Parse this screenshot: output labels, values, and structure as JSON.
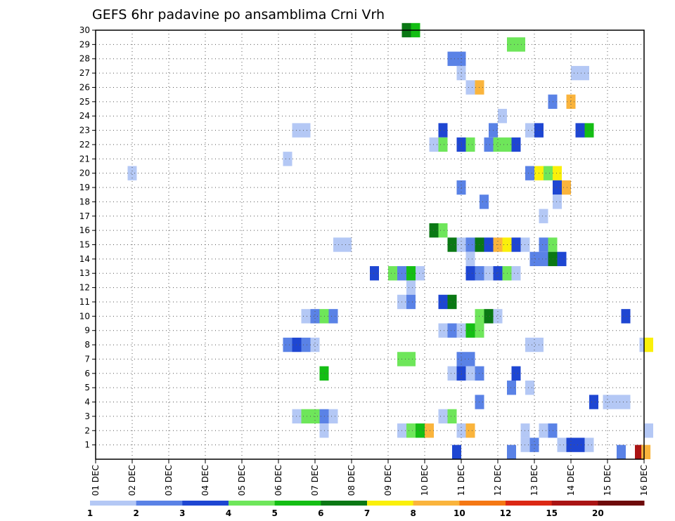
{
  "chart_data": {
    "type": "heatmap",
    "title": "GEFS 6hr padavine po ansamblima Crni Vrh",
    "y_ticks": [
      "1",
      "2",
      "3",
      "4",
      "5",
      "6",
      "7",
      "8",
      "9",
      "10",
      "11",
      "12",
      "13",
      "14",
      "15",
      "16",
      "17",
      "18",
      "19",
      "20",
      "21",
      "22",
      "23",
      "24",
      "25",
      "26",
      "27",
      "28",
      "29",
      "30"
    ],
    "x_ticks": [
      "01 DEC",
      "02 DEC",
      "03 DEC",
      "04 DEC",
      "05 DEC",
      "06 DEC",
      "07 DEC",
      "08 DEC",
      "09 DEC",
      "10 DEC",
      "11 DEC",
      "12 DEC",
      "13 DEC",
      "14 DEC",
      "15 DEC",
      "16 DEC"
    ],
    "y_range": [
      0,
      30
    ],
    "x_range_days": [
      0,
      15
    ],
    "grid": true,
    "colorbar": {
      "labels": [
        "1",
        "2",
        "3",
        "4",
        "5",
        "6",
        "7",
        "8",
        "10",
        "12",
        "15",
        "20"
      ],
      "colors": [
        "#b4c8f5",
        "#5a82e6",
        "#1e46d2",
        "#6ee65a",
        "#14be14",
        "#0a7814",
        "#faf00a",
        "#fab43c",
        "#f57814",
        "#dc2814",
        "#aa1414",
        "#6e0a0a"
      ]
    },
    "cells": [
      {
        "m": 30,
        "t": 33.5,
        "l": 6
      },
      {
        "m": 30,
        "t": 34.5,
        "l": 5
      },
      {
        "m": 29,
        "t": 45,
        "l": 4
      },
      {
        "m": 29,
        "t": 46,
        "l": 4
      },
      {
        "m": 28,
        "t": 38.5,
        "l": 2
      },
      {
        "m": 28,
        "t": 39.5,
        "l": 2
      },
      {
        "m": 27,
        "t": 39.5,
        "l": 1
      },
      {
        "m": 27,
        "t": 52,
        "l": 1
      },
      {
        "m": 27,
        "t": 53,
        "l": 1
      },
      {
        "m": 26,
        "t": 40.5,
        "l": 1
      },
      {
        "m": 26,
        "t": 41.5,
        "l": 8
      },
      {
        "m": 25,
        "t": 49.5,
        "l": 2
      },
      {
        "m": 25,
        "t": 51.5,
        "l": 8
      },
      {
        "m": 24,
        "t": 44,
        "l": 1
      },
      {
        "m": 23,
        "t": 21.5,
        "l": 1
      },
      {
        "m": 23,
        "t": 22.5,
        "l": 1
      },
      {
        "m": 23,
        "t": 37.5,
        "l": 3
      },
      {
        "m": 23,
        "t": 43,
        "l": 2
      },
      {
        "m": 23,
        "t": 47,
        "l": 1
      },
      {
        "m": 23,
        "t": 48,
        "l": 3
      },
      {
        "m": 23,
        "t": 52.5,
        "l": 3
      },
      {
        "m": 23,
        "t": 53.5,
        "l": 5
      },
      {
        "m": 22,
        "t": 36.5,
        "l": 1
      },
      {
        "m": 22,
        "t": 37.5,
        "l": 4
      },
      {
        "m": 22,
        "t": 39.5,
        "l": 3
      },
      {
        "m": 22,
        "t": 40.5,
        "l": 4
      },
      {
        "m": 22,
        "t": 42.5,
        "l": 2
      },
      {
        "m": 22,
        "t": 43.5,
        "l": 4
      },
      {
        "m": 22,
        "t": 44.5,
        "l": 4
      },
      {
        "m": 22,
        "t": 45.5,
        "l": 3
      },
      {
        "m": 21,
        "t": 20.5,
        "l": 1
      },
      {
        "m": 20,
        "t": 3.5,
        "l": 1
      },
      {
        "m": 20,
        "t": 47,
        "l": 2
      },
      {
        "m": 20,
        "t": 48,
        "l": 7
      },
      {
        "m": 20,
        "t": 49,
        "l": 4
      },
      {
        "m": 20,
        "t": 50,
        "l": 7
      },
      {
        "m": 19,
        "t": 39.5,
        "l": 2
      },
      {
        "m": 19,
        "t": 50,
        "l": 3
      },
      {
        "m": 19,
        "t": 51,
        "l": 8
      },
      {
        "m": 18,
        "t": 42,
        "l": 2
      },
      {
        "m": 18,
        "t": 50,
        "l": 1
      },
      {
        "m": 17,
        "t": 48.5,
        "l": 1
      },
      {
        "m": 16,
        "t": 36.5,
        "l": 6
      },
      {
        "m": 16,
        "t": 37.5,
        "l": 4
      },
      {
        "m": 15,
        "t": 26,
        "l": 1
      },
      {
        "m": 15,
        "t": 27,
        "l": 1
      },
      {
        "m": 15,
        "t": 38.5,
        "l": 6
      },
      {
        "m": 15,
        "t": 39.5,
        "l": 1
      },
      {
        "m": 15,
        "t": 40.5,
        "l": 2
      },
      {
        "m": 15,
        "t": 41.5,
        "l": 6
      },
      {
        "m": 15,
        "t": 42.5,
        "l": 3
      },
      {
        "m": 15,
        "t": 43.5,
        "l": 8
      },
      {
        "m": 15,
        "t": 44.5,
        "l": 7
      },
      {
        "m": 15,
        "t": 45.5,
        "l": 3
      },
      {
        "m": 15,
        "t": 46.5,
        "l": 1
      },
      {
        "m": 15,
        "t": 48.5,
        "l": 2
      },
      {
        "m": 15,
        "t": 49.5,
        "l": 4
      },
      {
        "m": 14,
        "t": 40.5,
        "l": 1
      },
      {
        "m": 14,
        "t": 47.5,
        "l": 2
      },
      {
        "m": 14,
        "t": 48.5,
        "l": 2
      },
      {
        "m": 14,
        "t": 49.5,
        "l": 6
      },
      {
        "m": 14,
        "t": 50.5,
        "l": 3
      },
      {
        "m": 13,
        "t": 30,
        "l": 3
      },
      {
        "m": 13,
        "t": 32,
        "l": 4
      },
      {
        "m": 13,
        "t": 33,
        "l": 2
      },
      {
        "m": 13,
        "t": 34,
        "l": 5
      },
      {
        "m": 13,
        "t": 35,
        "l": 1
      },
      {
        "m": 13,
        "t": 40.5,
        "l": 3
      },
      {
        "m": 13,
        "t": 41.5,
        "l": 2
      },
      {
        "m": 13,
        "t": 42.5,
        "l": 1
      },
      {
        "m": 13,
        "t": 43.5,
        "l": 3
      },
      {
        "m": 13,
        "t": 44.5,
        "l": 4
      },
      {
        "m": 13,
        "t": 45.5,
        "l": 1
      },
      {
        "m": 12,
        "t": 34,
        "l": 1
      },
      {
        "m": 11,
        "t": 33,
        "l": 1
      },
      {
        "m": 11,
        "t": 34,
        "l": 2
      },
      {
        "m": 11,
        "t": 37.5,
        "l": 3
      },
      {
        "m": 11,
        "t": 38.5,
        "l": 6
      },
      {
        "m": 10,
        "t": 22.5,
        "l": 1
      },
      {
        "m": 10,
        "t": 23.5,
        "l": 2
      },
      {
        "m": 10,
        "t": 24.5,
        "l": 4
      },
      {
        "m": 10,
        "t": 25.5,
        "l": 2
      },
      {
        "m": 10,
        "t": 41.5,
        "l": 4
      },
      {
        "m": 10,
        "t": 42.5,
        "l": 6
      },
      {
        "m": 10,
        "t": 43.5,
        "l": 1
      },
      {
        "m": 10,
        "t": 57.5,
        "l": 3
      },
      {
        "m": 9,
        "t": 37.5,
        "l": 1
      },
      {
        "m": 9,
        "t": 38.5,
        "l": 2
      },
      {
        "m": 9,
        "t": 39.5,
        "l": 1
      },
      {
        "m": 9,
        "t": 40.5,
        "l": 5
      },
      {
        "m": 9,
        "t": 41.5,
        "l": 4
      },
      {
        "m": 8,
        "t": 20.5,
        "l": 2
      },
      {
        "m": 8,
        "t": 21.5,
        "l": 3
      },
      {
        "m": 8,
        "t": 22.5,
        "l": 2
      },
      {
        "m": 8,
        "t": 23.5,
        "l": 1
      },
      {
        "m": 8,
        "t": 47,
        "l": 1
      },
      {
        "m": 8,
        "t": 48,
        "l": 1
      },
      {
        "m": 8,
        "t": 59.5,
        "l": 1
      },
      {
        "m": 8,
        "t": 60,
        "l": 7
      },
      {
        "m": 7,
        "t": 33,
        "l": 4
      },
      {
        "m": 7,
        "t": 34,
        "l": 4
      },
      {
        "m": 7,
        "t": 39.5,
        "l": 2
      },
      {
        "m": 7,
        "t": 40.5,
        "l": 2
      },
      {
        "m": 6,
        "t": 24.5,
        "l": 5
      },
      {
        "m": 6,
        "t": 38.5,
        "l": 1
      },
      {
        "m": 6,
        "t": 39.5,
        "l": 3
      },
      {
        "m": 6,
        "t": 40.5,
        "l": 1
      },
      {
        "m": 6,
        "t": 41.5,
        "l": 2
      },
      {
        "m": 6,
        "t": 45.5,
        "l": 3
      },
      {
        "m": 5,
        "t": 45,
        "l": 2
      },
      {
        "m": 5,
        "t": 47,
        "l": 1
      },
      {
        "m": 4,
        "t": 41.5,
        "l": 2
      },
      {
        "m": 4,
        "t": 54,
        "l": 3
      },
      {
        "m": 4,
        "t": 55.5,
        "l": 1
      },
      {
        "m": 4,
        "t": 56.5,
        "l": 1
      },
      {
        "m": 4,
        "t": 57.5,
        "l": 1
      },
      {
        "m": 3,
        "t": 21.5,
        "l": 1
      },
      {
        "m": 3,
        "t": 22.5,
        "l": 4
      },
      {
        "m": 3,
        "t": 23.5,
        "l": 4
      },
      {
        "m": 3,
        "t": 24.5,
        "l": 2
      },
      {
        "m": 3,
        "t": 25.5,
        "l": 1
      },
      {
        "m": 3,
        "t": 37.5,
        "l": 1
      },
      {
        "m": 3,
        "t": 38.5,
        "l": 4
      },
      {
        "m": 2,
        "t": 24.5,
        "l": 1
      },
      {
        "m": 2,
        "t": 33,
        "l": 1
      },
      {
        "m": 2,
        "t": 34,
        "l": 4
      },
      {
        "m": 2,
        "t": 35,
        "l": 5
      },
      {
        "m": 2,
        "t": 36,
        "l": 8
      },
      {
        "m": 2,
        "t": 39.5,
        "l": 1
      },
      {
        "m": 2,
        "t": 40.5,
        "l": 8
      },
      {
        "m": 2,
        "t": 46.5,
        "l": 1
      },
      {
        "m": 2,
        "t": 48.5,
        "l": 1
      },
      {
        "m": 2,
        "t": 49.5,
        "l": 2
      },
      {
        "m": 2,
        "t": 60,
        "l": 1
      },
      {
        "m": 1,
        "t": 46.5,
        "l": 1
      },
      {
        "m": 1,
        "t": 47.5,
        "l": 2
      },
      {
        "m": 1,
        "t": 50.5,
        "l": 1
      },
      {
        "m": 1,
        "t": 51.5,
        "l": 3
      },
      {
        "m": 1,
        "t": 52.5,
        "l": 3
      },
      {
        "m": 1,
        "t": 53.5,
        "l": 1
      },
      {
        "m": 0.5,
        "t": 39,
        "l": 3
      },
      {
        "m": 0.5,
        "t": 45,
        "l": 2
      },
      {
        "m": 0.5,
        "t": 57,
        "l": 2
      },
      {
        "m": 0.5,
        "t": 59,
        "l": 11
      },
      {
        "m": 0.5,
        "t": 59.7,
        "l": 8
      }
    ]
  }
}
